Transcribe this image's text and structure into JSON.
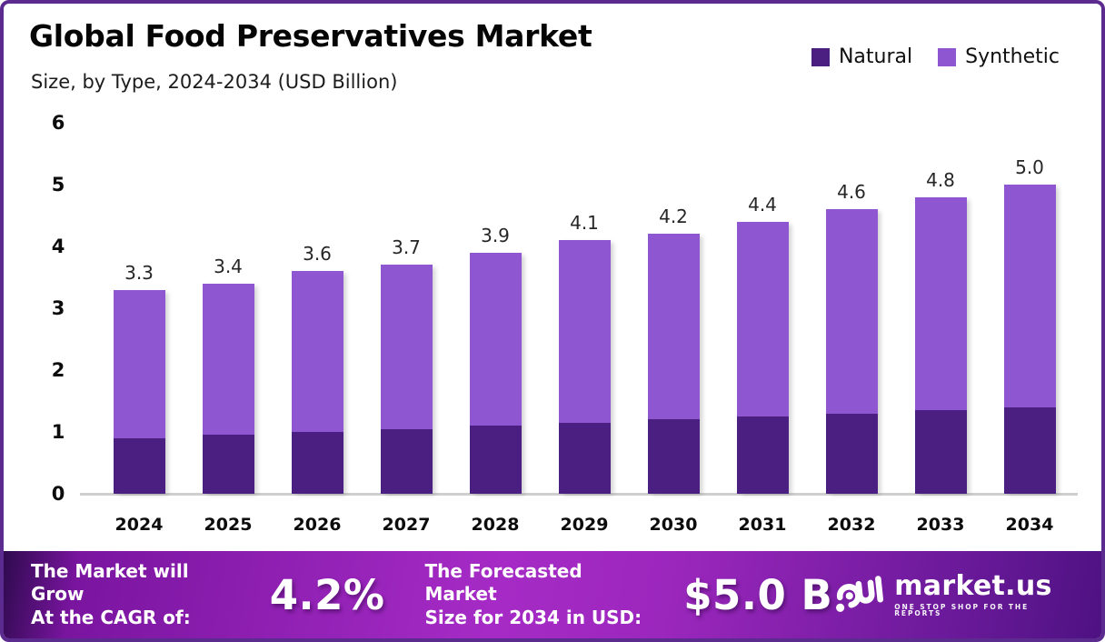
{
  "header": {
    "title": "Global Food Preservatives Market",
    "subtitle": "Size, by Type, 2024-2034 (USD Billion)"
  },
  "chart_data": {
    "type": "bar",
    "stacked": true,
    "title": "Global Food Preservatives Market Size, by Type, 2024-2034 (USD Billion)",
    "categories": [
      "2024",
      "2025",
      "2026",
      "2027",
      "2028",
      "2029",
      "2030",
      "2031",
      "2032",
      "2033",
      "2034"
    ],
    "series": [
      {
        "name": "Natural",
        "color": "#4B1E82",
        "values": [
          0.9,
          0.95,
          1.0,
          1.05,
          1.1,
          1.15,
          1.2,
          1.25,
          1.3,
          1.35,
          1.4
        ]
      },
      {
        "name": "Synthetic",
        "color": "#8E57D1",
        "values": [
          2.4,
          2.45,
          2.6,
          2.65,
          2.8,
          2.95,
          3.0,
          3.15,
          3.3,
          3.45,
          3.6
        ]
      }
    ],
    "totals": [
      3.3,
      3.4,
      3.6,
      3.7,
      3.9,
      4.1,
      4.2,
      4.4,
      4.6,
      4.8,
      5.0
    ],
    "total_labels": [
      "3.3",
      "3.4",
      "3.6",
      "3.7",
      "3.9",
      "4.1",
      "4.2",
      "4.4",
      "4.6",
      "4.8",
      "5.0"
    ],
    "yticks": [
      0,
      1,
      2,
      3,
      4,
      5,
      6
    ],
    "ylim": [
      0,
      6
    ],
    "xlabel": "",
    "ylabel": "",
    "grid": false,
    "legend_position": "top-right"
  },
  "footer": {
    "cagr_label_line1": "The Market will Grow",
    "cagr_label_line2": "At the CAGR of:",
    "cagr_value": "4.2%",
    "forecast_label_line1": "The Forecasted Market",
    "forecast_label_line2": "Size for 2034 in USD:",
    "forecast_value": "$5.0 B",
    "brand_name": "market.us",
    "brand_tagline": "ONE STOP SHOP FOR THE REPORTS"
  },
  "colors": {
    "border": "#5C2B90",
    "natural": "#4B1E82",
    "synthetic": "#8E57D1",
    "baseline": "#cfcfcf",
    "footer_mid": "#a62bc6",
    "text": "#0c0c0c"
  }
}
